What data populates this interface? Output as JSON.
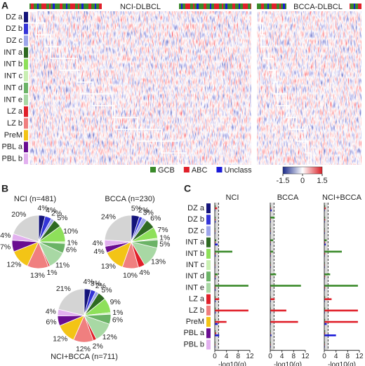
{
  "panel_labels": [
    "A",
    "B",
    "C"
  ],
  "clusters": [
    {
      "name": "DZ a",
      "color": "#14147a"
    },
    {
      "name": "DZ b",
      "color": "#3434d8"
    },
    {
      "name": "DZ c",
      "color": "#9ea6ea"
    },
    {
      "name": "INT a",
      "color": "#2f6a22"
    },
    {
      "name": "INT b",
      "color": "#8ee05a"
    },
    {
      "name": "INT c",
      "color": "#c9efb2"
    },
    {
      "name": "INT d",
      "color": "#6bb366"
    },
    {
      "name": "INT e",
      "color": "#a8d8a4"
    },
    {
      "name": "LZ a",
      "color": "#e0202a"
    },
    {
      "name": "LZ b",
      "color": "#f07f7f"
    },
    {
      "name": "PreM",
      "color": "#f3c416"
    },
    {
      "name": "PBL a",
      "color": "#6a0d91"
    },
    {
      "name": "PBL b",
      "color": "#e2b0ef"
    }
  ],
  "heatmap": {
    "titles": [
      "NCI-DLBCL",
      "BCCA-DLBCL"
    ],
    "legend": [
      {
        "name": "GCB",
        "color": "#3a8a2a"
      },
      {
        "name": "ABC",
        "color": "#e0202a"
      },
      {
        "name": "Unclass",
        "color": "#1a1ad8"
      }
    ],
    "colorbar": {
      "lim": [
        -1.5,
        1.5
      ],
      "ticks": [
        -1.5,
        0,
        1.5
      ]
    }
  },
  "chart_data": [
    {
      "type": "pie",
      "title": "NCI (n=481)",
      "values": [
        4,
        4,
        2,
        5,
        10,
        1,
        6,
        11,
        1,
        13,
        12,
        7,
        4,
        20
      ],
      "value_labels": [
        "4%",
        "4%",
        "2%",
        "5%",
        "10%",
        "1%",
        "6%",
        "11%",
        "1%",
        "13%",
        "12%",
        "7%",
        "4%",
        "20%"
      ],
      "colors": [
        "#14147a",
        "#3434d8",
        "#9ea6ea",
        "#2f6a22",
        "#8ee05a",
        "#c9efb2",
        "#6bb366",
        "#a8d8a4",
        "#e0202a",
        "#f07f7f",
        "#f3c416",
        "#6a0d91",
        "#e2b0ef",
        "#d4d4d4"
      ]
    },
    {
      "type": "pie",
      "title": "BCCA (n=230)",
      "values": [
        5,
        2,
        3,
        6,
        7,
        1,
        5,
        13,
        4,
        10,
        13,
        4,
        4,
        24
      ],
      "value_labels": [
        "5%",
        "2%",
        "3%",
        "6%",
        "7%",
        "1%",
        "5%",
        "13%",
        "4%",
        "10%",
        "13%",
        "4%",
        "4%",
        "24%"
      ],
      "colors": [
        "#14147a",
        "#3434d8",
        "#9ea6ea",
        "#2f6a22",
        "#8ee05a",
        "#c9efb2",
        "#6bb366",
        "#a8d8a4",
        "#e0202a",
        "#f07f7f",
        "#f3c416",
        "#6a0d91",
        "#e2b0ef",
        "#d4d4d4"
      ]
    },
    {
      "type": "pie",
      "title": "NCI+BCCA (n=711)",
      "values": [
        4,
        3,
        2,
        5,
        9,
        1,
        6,
        12,
        2,
        12,
        12,
        6,
        4,
        21
      ],
      "value_labels": [
        "4%",
        "3%",
        "2%",
        "5%",
        "9%",
        "1%",
        "6%",
        "12%",
        "2%",
        "12%",
        "12%",
        "6%",
        "4%",
        "21%"
      ],
      "colors": [
        "#14147a",
        "#3434d8",
        "#9ea6ea",
        "#2f6a22",
        "#8ee05a",
        "#c9efb2",
        "#6bb366",
        "#a8d8a4",
        "#e0202a",
        "#f07f7f",
        "#f3c416",
        "#6a0d91",
        "#e2b0ef",
        "#d4d4d4"
      ]
    },
    {
      "type": "bar",
      "title": "NCI",
      "xlabel": "-log10(q)",
      "xlim": [
        0,
        12
      ],
      "xticks": [
        0,
        4,
        8,
        12
      ],
      "reference_line": 1.3,
      "series": [
        {
          "color": "#3a8a2a",
          "values": [
            0.3,
            0.3,
            0.2,
            0.5,
            6,
            0.2,
            1,
            11.5,
            0.3,
            0.3,
            0.3,
            0.3,
            0.2
          ]
        },
        {
          "color": "#e0202a",
          "values": [
            0.8,
            0.3,
            0.2,
            0.3,
            0.3,
            0.2,
            0.3,
            0.3,
            1.5,
            11.5,
            4,
            0.5,
            0.2
          ]
        },
        {
          "color": "#1a1ad8",
          "values": [
            0.2,
            0.3,
            0.2,
            1,
            0.3,
            0.2,
            0.3,
            0.3,
            0.3,
            0.3,
            1,
            1.5,
            0.2
          ]
        }
      ]
    },
    {
      "type": "bar",
      "title": "BCCA",
      "xlabel": "-log10(q)",
      "xlim": [
        0,
        12
      ],
      "xticks": [
        0,
        4,
        8,
        12
      ],
      "reference_line": 1.3,
      "series": [
        {
          "color": "#3a8a2a",
          "values": [
            0.2,
            1.5,
            0.2,
            1,
            1,
            0.2,
            2,
            10.5,
            0.2,
            0.2,
            0.2,
            0.2,
            0.2
          ]
        },
        {
          "color": "#e0202a",
          "values": [
            0.3,
            0.2,
            0.2,
            0.2,
            0.2,
            0.2,
            0.2,
            0.2,
            1.5,
            5.5,
            9.5,
            0.2,
            0.2
          ]
        },
        {
          "color": "#1a1ad8",
          "values": [
            0.5,
            0.2,
            0.2,
            0.2,
            0.2,
            0.2,
            0.2,
            0.2,
            0.2,
            0.2,
            0.2,
            0.4,
            0.2
          ]
        }
      ]
    },
    {
      "type": "bar",
      "title": "NCI+BCCA",
      "xlabel": "-log10(q)",
      "xlim": [
        0,
        12
      ],
      "xticks": [
        0,
        4,
        8,
        12
      ],
      "reference_line": 1.3,
      "series": [
        {
          "color": "#3a8a2a",
          "values": [
            0.3,
            0.3,
            0.2,
            0.8,
            6,
            0.2,
            2,
            11.5,
            0.3,
            0.3,
            0.3,
            0.3,
            0.2
          ]
        },
        {
          "color": "#e0202a",
          "values": [
            0.5,
            0.3,
            0.2,
            0.3,
            0.3,
            0.2,
            0.3,
            0.3,
            2.5,
            11.5,
            11.5,
            0.3,
            0.2
          ]
        },
        {
          "color": "#1a1ad8",
          "values": [
            0.2,
            0.2,
            0.2,
            0.5,
            0.2,
            0.2,
            0.2,
            0.2,
            0.2,
            0.2,
            0.8,
            4,
            0.2
          ]
        }
      ]
    }
  ]
}
